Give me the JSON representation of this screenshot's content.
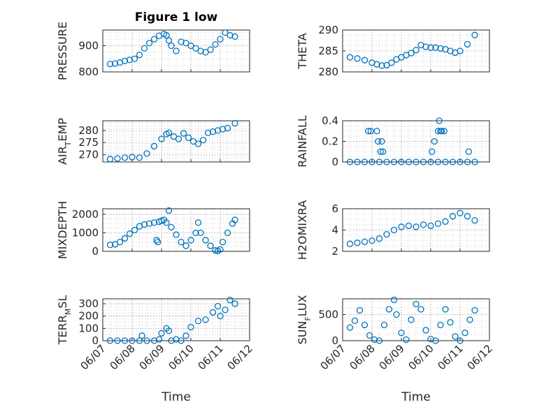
{
  "figure_title": "Figure 1 low",
  "marker_color": "#0072bd",
  "chart_data": [
    {
      "type": "scatter",
      "ylabel": "PRESSURE",
      "ylim": [
        800,
        960
      ],
      "yticks": [
        800,
        900
      ],
      "grid": true,
      "x": [
        "06/07 06:00",
        "06/07 10:00",
        "06/07 14:00",
        "06/07 18:00",
        "06/07 22:00",
        "06/08 02:00",
        "06/08 06:00",
        "06/08 10:00",
        "06/08 14:00",
        "06/08 18:00",
        "06/08 22:00",
        "06/09 02:00",
        "06/09 04:00",
        "06/09 06:00",
        "06/09 08:00",
        "06/09 12:00",
        "06/09 16:00",
        "06/09 20:00",
        "06/10 00:00",
        "06/10 04:00",
        "06/10 08:00",
        "06/10 12:00",
        "06/10 16:00",
        "06/10 20:00",
        "06/11 00:00",
        "06/11 04:00",
        "06/11 08:00",
        "06/11 12:00"
      ],
      "y": [
        830,
        832,
        836,
        842,
        846,
        850,
        865,
        890,
        910,
        925,
        938,
        945,
        940,
        920,
        900,
        880,
        915,
        910,
        900,
        890,
        880,
        875,
        885,
        905,
        925,
        950,
        940,
        935
      ]
    },
    {
      "type": "scatter",
      "ylabel": "THETA",
      "ylim": [
        280,
        290
      ],
      "yticks": [
        280,
        285,
        290
      ],
      "grid": true,
      "x": [
        "06/07 06:00",
        "06/07 12:00",
        "06/07 18:00",
        "06/08 00:00",
        "06/08 04:00",
        "06/08 08:00",
        "06/08 12:00",
        "06/08 16:00",
        "06/08 20:00",
        "06/09 00:00",
        "06/09 04:00",
        "06/09 08:00",
        "06/09 12:00",
        "06/09 16:00",
        "06/09 20:00",
        "06/10 00:00",
        "06/10 04:00",
        "06/10 08:00",
        "06/10 12:00",
        "06/10 16:00",
        "06/10 20:00",
        "06/11 00:00",
        "06/11 06:00",
        "06/11 12:00"
      ],
      "y": [
        283.5,
        283.2,
        282.8,
        282.2,
        281.8,
        281.5,
        281.6,
        282.2,
        283.0,
        283.5,
        284.0,
        284.5,
        285.2,
        286.4,
        286.0,
        285.8,
        285.8,
        285.6,
        285.4,
        285.0,
        284.6,
        285.0,
        286.6,
        288.8
      ]
    },
    {
      "type": "scatter",
      "ylabel": "AIR_TEMP",
      "ylim": [
        267,
        284
      ],
      "yticks": [
        270,
        275,
        280
      ],
      "grid": true,
      "x": [
        "06/07 06:00",
        "06/07 12:00",
        "06/07 18:00",
        "06/08 00:00",
        "06/08 06:00",
        "06/08 12:00",
        "06/08 18:00",
        "06/09 00:00",
        "06/09 04:00",
        "06/09 06:00",
        "06/09 10:00",
        "06/09 14:00",
        "06/09 18:00",
        "06/09 22:00",
        "06/10 02:00",
        "06/10 06:00",
        "06/10 10:00",
        "06/10 14:00",
        "06/10 18:00",
        "06/10 22:00",
        "06/11 02:00",
        "06/11 06:00",
        "06/11 12:00"
      ],
      "y": [
        268.2,
        268.4,
        268.8,
        269.0,
        268.8,
        270.5,
        273.5,
        276.5,
        278.5,
        279.0,
        277.5,
        276.5,
        278.8,
        277.0,
        275.5,
        274.5,
        276.0,
        279.0,
        279.5,
        280.0,
        280.5,
        281.0,
        283.0
      ]
    },
    {
      "type": "scatter",
      "ylabel": "RAINFALL",
      "ylim": [
        0,
        0.4
      ],
      "yticks": [
        0,
        0.2,
        0.4
      ],
      "grid": true,
      "x": [
        "06/07 06:00",
        "06/07 12:00",
        "06/07 18:00",
        "06/08 00:00",
        "06/08 06:00",
        "06/08 12:00",
        "06/08 18:00",
        "06/09 00:00",
        "06/09 06:00",
        "06/09 12:00",
        "06/09 18:00",
        "06/10 00:00",
        "06/10 06:00",
        "06/10 12:00",
        "06/10 18:00",
        "06/11 00:00",
        "06/11 06:00",
        "06/11 12:00",
        "06/07 21:00",
        "06/07 23:00",
        "06/08 04:00",
        "06/08 05:00",
        "06/08 07:00",
        "06/08 08:00",
        "06/08 09:00",
        "06/10 01:00",
        "06/10 03:00",
        "06/10 06:00",
        "06/10 07:00",
        "06/10 08:00",
        "06/10 09:00",
        "06/10 11:00",
        "06/11 07:00"
      ],
      "y": [
        0,
        0,
        0,
        0,
        0,
        0,
        0,
        0,
        0,
        0,
        0,
        0,
        0,
        0,
        0,
        0,
        0,
        0,
        0.3,
        0.3,
        0.3,
        0.2,
        0.1,
        0.2,
        0.1,
        0.1,
        0.2,
        0.3,
        0.4,
        0.3,
        0.3,
        0.3,
        0.1
      ]
    },
    {
      "type": "scatter",
      "ylabel": "MIXDEPTH",
      "ylim": [
        0,
        2300
      ],
      "yticks": [
        0,
        1000,
        2000
      ],
      "grid": true,
      "x": [
        "06/07 06:00",
        "06/07 10:00",
        "06/07 14:00",
        "06/07 18:00",
        "06/07 22:00",
        "06/08 02:00",
        "06/08 06:00",
        "06/08 10:00",
        "06/08 14:00",
        "06/08 18:00",
        "06/08 22:00",
        "06/09 00:00",
        "06/09 02:00",
        "06/09 04:00",
        "06/09 06:00",
        "06/09 08:00",
        "06/09 12:00",
        "06/09 16:00",
        "06/09 20:00",
        "06/10 00:00",
        "06/10 04:00",
        "06/10 06:00",
        "06/10 08:00",
        "06/10 12:00",
        "06/10 16:00",
        "06/10 20:00",
        "06/10 22:00",
        "06/11 00:00",
        "06/11 02:00",
        "06/11 06:00",
        "06/11 10:00",
        "06/11 12:00",
        "06/08 20:00",
        "06/08 21:00"
      ],
      "y": [
        350,
        380,
        500,
        700,
        950,
        1150,
        1350,
        1450,
        1500,
        1550,
        1600,
        1650,
        1700,
        1550,
        2200,
        1300,
        900,
        500,
        300,
        600,
        1000,
        1550,
        1000,
        600,
        300,
        50,
        20,
        100,
        500,
        1000,
        1500,
        1700,
        600,
        500
      ]
    },
    {
      "type": "scatter",
      "ylabel": "H2OMIXRA",
      "ylim": [
        2,
        6
      ],
      "yticks": [
        2,
        4,
        6
      ],
      "grid": true,
      "x": [
        "06/07 06:00",
        "06/07 12:00",
        "06/07 18:00",
        "06/08 00:00",
        "06/08 06:00",
        "06/08 12:00",
        "06/08 18:00",
        "06/09 00:00",
        "06/09 06:00",
        "06/09 12:00",
        "06/09 18:00",
        "06/10 00:00",
        "06/10 06:00",
        "06/10 12:00",
        "06/10 18:00",
        "06/11 00:00",
        "06/11 06:00",
        "06/11 12:00"
      ],
      "y": [
        2.7,
        2.8,
        2.9,
        3.0,
        3.2,
        3.6,
        4.0,
        4.3,
        4.4,
        4.3,
        4.5,
        4.4,
        4.6,
        4.8,
        5.3,
        5.6,
        5.3,
        4.9
      ]
    },
    {
      "type": "scatter",
      "ylabel": "TERR_MSL",
      "ylim": [
        0,
        340
      ],
      "yticks": [
        0,
        100,
        200,
        300
      ],
      "grid": true,
      "x": [
        "06/07 06:00",
        "06/07 12:00",
        "06/07 18:00",
        "06/08 00:00",
        "06/08 06:00",
        "06/08 08:00",
        "06/08 12:00",
        "06/08 18:00",
        "06/08 22:00",
        "06/09 00:00",
        "06/09 04:00",
        "06/09 06:00",
        "06/09 08:00",
        "06/09 12:00",
        "06/09 16:00",
        "06/09 20:00",
        "06/10 00:00",
        "06/10 06:00",
        "06/10 12:00",
        "06/10 18:00",
        "06/10 22:00",
        "06/11 00:00",
        "06/11 04:00",
        "06/11 08:00",
        "06/11 12:00"
      ],
      "y": [
        0,
        0,
        0,
        0,
        0,
        40,
        0,
        0,
        10,
        60,
        100,
        80,
        0,
        10,
        0,
        40,
        110,
        160,
        170,
        230,
        280,
        200,
        250,
        330,
        300
      ]
    },
    {
      "type": "scatter",
      "ylabel": "SUN_FLUX",
      "ylim": [
        0,
        800
      ],
      "yticks": [
        0,
        500
      ],
      "grid": true,
      "x": [
        "06/07 06:00",
        "06/07 10:00",
        "06/07 14:00",
        "06/07 18:00",
        "06/07 22:00",
        "06/08 02:00",
        "06/08 06:00",
        "06/08 10:00",
        "06/08 14:00",
        "06/08 18:00",
        "06/08 20:00",
        "06/09 00:00",
        "06/09 04:00",
        "06/09 08:00",
        "06/09 12:00",
        "06/09 16:00",
        "06/09 20:00",
        "06/10 00:00",
        "06/10 04:00",
        "06/10 08:00",
        "06/10 12:00",
        "06/10 16:00",
        "06/10 20:00",
        "06/11 00:00",
        "06/11 04:00",
        "06/11 08:00",
        "06/11 12:00"
      ],
      "y": [
        250,
        380,
        580,
        300,
        100,
        20,
        0,
        300,
        600,
        780,
        500,
        150,
        20,
        400,
        700,
        600,
        200,
        30,
        0,
        300,
        600,
        350,
        80,
        0,
        150,
        400,
        580
      ]
    }
  ],
  "xtick_labels": [
    "06/07",
    "06/08",
    "06/09",
    "06/10",
    "06/11",
    "06/12"
  ],
  "xlabel": "Time",
  "xlim": [
    "06/07 00:00",
    "06/12 00:00"
  ]
}
